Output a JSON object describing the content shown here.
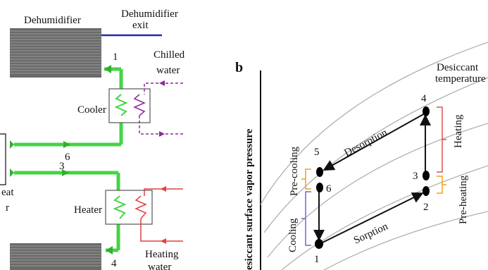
{
  "left": {
    "dehumidifier_label": "Dehumidifier",
    "exit_label_1": "Dehumidifier",
    "exit_label_2": "exit",
    "chilled_label_1": "Chilled",
    "chilled_label_2": "water",
    "cooler_label": "Cooler",
    "heater_label": "Heater",
    "heating_label_1": "Heating",
    "heating_label_2": "water",
    "cut_label_1": "eat",
    "cut_label_2": "r",
    "node_1": "1",
    "node_3": "3",
    "node_4": "4",
    "node_6": "6"
  },
  "right": {
    "panel_letter": "b",
    "y_axis_label": "esiccant surface vapor pressure",
    "desiccant_label_1": "Desiccant",
    "desiccant_label_2": "temperature",
    "desorption_label": "Desorption",
    "sorption_label": "Sorption",
    "heating_label": "Heating",
    "preheating_label": "Pre-heating",
    "cooling_label": "Cooling",
    "precooling_label": "Pre-cooling",
    "point_1": "1",
    "point_2": "2",
    "point_3": "3",
    "point_4": "4",
    "point_5": "5",
    "point_6": "6"
  },
  "colors": {
    "green_pipe": "#44d444",
    "blue_line": "#2a2aa0",
    "purple_line": "#8a2a9a",
    "red_line": "#e04040",
    "orange_brace": "#f0a020",
    "blue_brace": "#6a6ad0",
    "red_brace": "#e05050",
    "curve_gray": "#b0b0b0",
    "black": "#111111"
  }
}
